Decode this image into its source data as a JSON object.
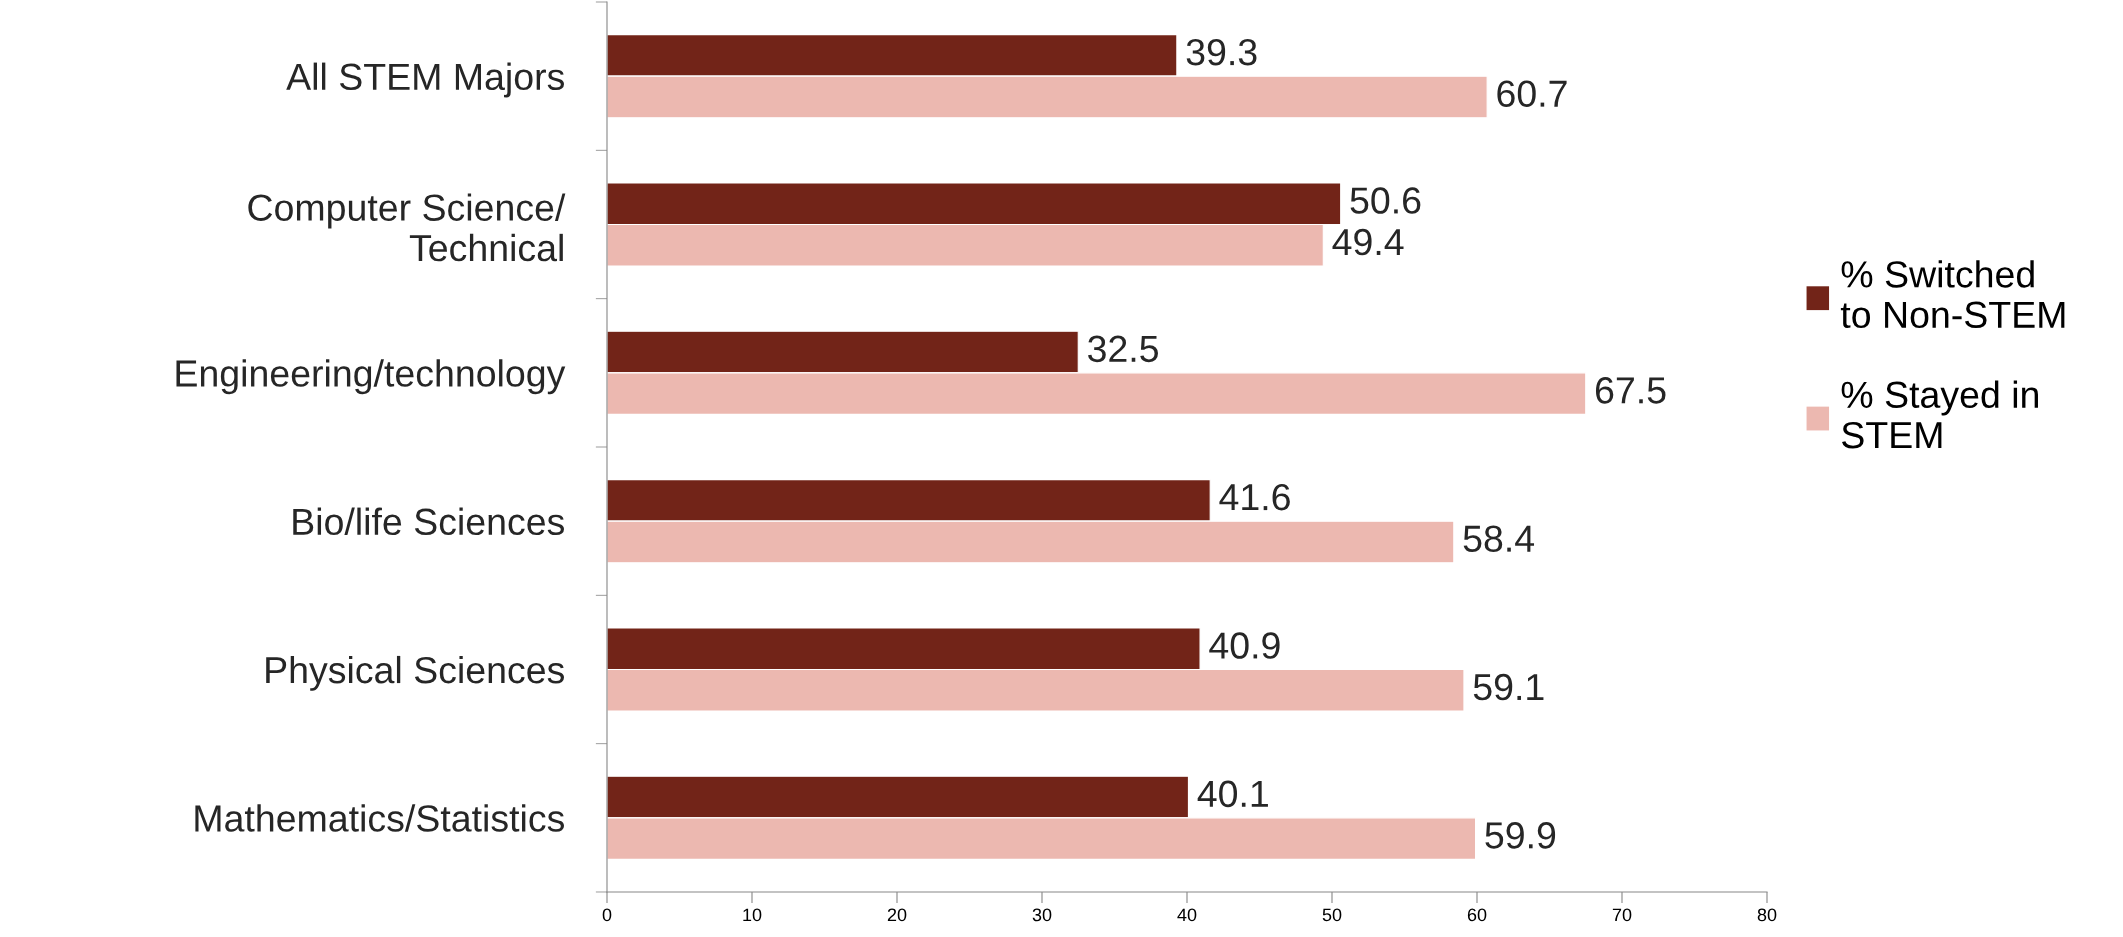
{
  "chart_data": {
    "type": "bar",
    "orientation": "horizontal",
    "categories": [
      "All STEM Majors",
      "Computer Science/\nTechnical",
      "Engineering/technology",
      "Bio/life Sciences",
      "Physical Sciences",
      "Mathematics/Statistics"
    ],
    "series": [
      {
        "name": "% Switched\nto Non-STEM",
        "color": "#722418",
        "values": [
          39.3,
          50.6,
          32.5,
          41.6,
          40.9,
          40.1
        ]
      },
      {
        "name": "% Stayed in\nSTEM",
        "color": "#ecb8b0",
        "values": [
          60.7,
          49.4,
          67.5,
          58.4,
          59.1,
          59.9
        ]
      }
    ],
    "xlim": [
      0,
      80
    ],
    "xticks": [
      0,
      10,
      20,
      30,
      40,
      50,
      60,
      70,
      80
    ],
    "data_labels": true,
    "legend": "right",
    "grid": false
  }
}
